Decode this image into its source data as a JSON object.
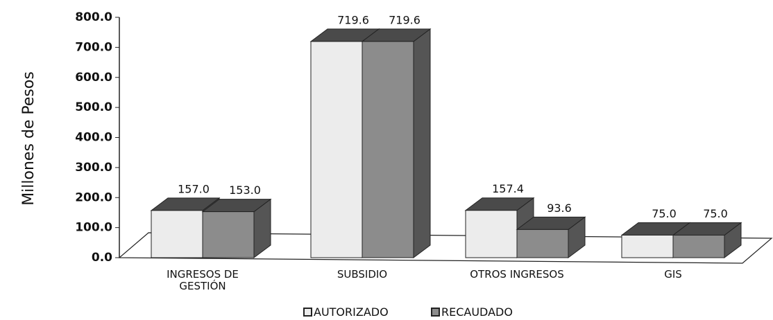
{
  "chart_data": {
    "type": "bar3d",
    "y_label": "Millones de Pesos",
    "categories": [
      "INGRESOS DE GESTIÓN",
      "SUBSIDIO",
      "OTROS INGRESOS",
      "GIS"
    ],
    "series": [
      {
        "name": "AUTORIZADO",
        "color": "#ececec",
        "values": [
          157.0,
          719.6,
          157.4,
          75.0
        ],
        "value_labels": [
          "157.0",
          "719.6",
          "157.4",
          "75.0"
        ]
      },
      {
        "name": "RECAUDADO",
        "color": "#8c8c8c",
        "values": [
          153.0,
          719.6,
          93.6,
          75.0
        ],
        "value_labels": [
          "153.0",
          "719.6",
          "93.6",
          "75.0"
        ]
      }
    ],
    "ylim": [
      0,
      800
    ],
    "yticks": [
      {
        "value": 0,
        "label": "0.0"
      },
      {
        "value": 100,
        "label": "100.0"
      },
      {
        "value": 200,
        "label": "200.0"
      },
      {
        "value": 300,
        "label": "300.0"
      },
      {
        "value": 400,
        "label": "400.0"
      },
      {
        "value": 500,
        "label": "500.0"
      },
      {
        "value": 600,
        "label": "600.0"
      },
      {
        "value": 700,
        "label": "700.0"
      },
      {
        "value": 800,
        "label": "800.0"
      }
    ],
    "legend": "bottom"
  }
}
